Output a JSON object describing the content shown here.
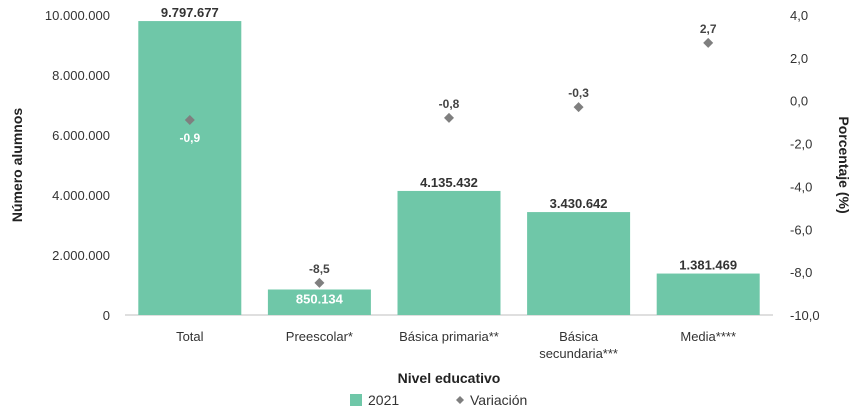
{
  "chart_data": {
    "type": "bar",
    "categories": [
      [
        "Total"
      ],
      [
        "Preescolar*"
      ],
      [
        "Básica primaria**"
      ],
      [
        "Básica",
        "secundaria***"
      ],
      [
        "Media****"
      ]
    ],
    "series": [
      {
        "name": "2021",
        "type": "bar",
        "axis": "left",
        "color": "#6fc7a8",
        "values": [
          9797677,
          850134,
          4135432,
          3430642,
          1381469
        ],
        "labels": [
          "9.797.677",
          "850.134",
          "4.135.432",
          "3.430.642",
          "1.381.469"
        ]
      },
      {
        "name": "Variación",
        "type": "scatter",
        "axis": "right",
        "color": "#7f7f7f",
        "marker": "diamond",
        "values": [
          -0.9,
          -8.5,
          -0.8,
          -0.3,
          2.7
        ],
        "labels": [
          "-0,9",
          "-8,5",
          "-0,8",
          "-0,3",
          "2,7"
        ]
      }
    ],
    "xlabel": "Nivel educativo",
    "ylabel": "Número alumnos",
    "y2label": "Porcentaje (%)",
    "ylim": [
      0,
      10000000
    ],
    "y2lim": [
      -10,
      4
    ],
    "yticks": [
      "0",
      "2.000.000",
      "4.000.000",
      "6.000.000",
      "8.000.000",
      "10.000.000"
    ],
    "y2ticks": [
      "-10,0",
      "-8,0",
      "-6,0",
      "-4,0",
      "-2,0",
      "0,0",
      "2,0",
      "4,0"
    ],
    "legend_position": "bottom",
    "grid": false
  }
}
